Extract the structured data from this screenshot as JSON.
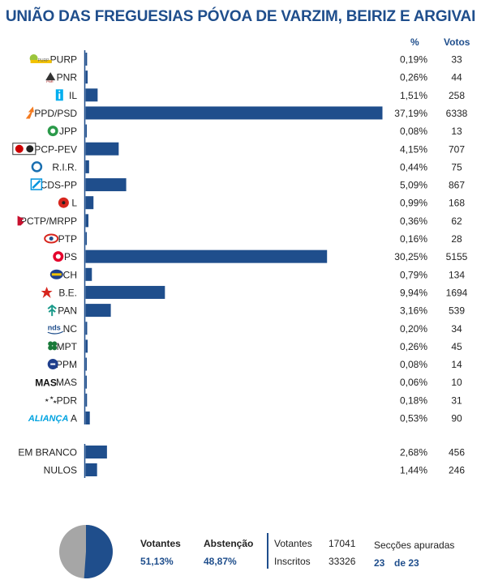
{
  "title": "UNIÃO DAS FREGUESIAS PÓVOA DE VARZIM, BEIRIZ E ARGIVAI",
  "headers": {
    "pct": "%",
    "votes": "Votos"
  },
  "chart_data": {
    "type": "bar",
    "orientation": "horizontal",
    "categories": [
      "PURP",
      "PNR",
      "IL",
      "PPD/PSD",
      "JPP",
      "PCP-PEV",
      "R.I.R.",
      "CDS-PP",
      "L",
      "PCTP/MRPP",
      "PTP",
      "PS",
      "CH",
      "B.E.",
      "PAN",
      "NC",
      "MPT",
      "PPM",
      "MAS",
      "PDR",
      "A",
      "EM BRANCO",
      "NULOS"
    ],
    "pct_labels": [
      "0,19%",
      "0,26%",
      "1,51%",
      "37,19%",
      "0,08%",
      "4,15%",
      "0,44%",
      "5,09%",
      "0,99%",
      "0,36%",
      "0,16%",
      "30,25%",
      "0,79%",
      "9,94%",
      "3,16%",
      "0,20%",
      "0,26%",
      "0,08%",
      "0,06%",
      "0,18%",
      "0,53%",
      "2,68%",
      "1,44%"
    ],
    "values": [
      0.19,
      0.26,
      1.51,
      37.19,
      0.08,
      4.15,
      0.44,
      5.09,
      0.99,
      0.36,
      0.16,
      30.25,
      0.79,
      9.94,
      3.16,
      0.2,
      0.26,
      0.08,
      0.06,
      0.18,
      0.53,
      2.68,
      1.44
    ],
    "votes": [
      "33",
      "44",
      "258",
      "6338",
      "13",
      "707",
      "75",
      "867",
      "168",
      "62",
      "28",
      "5155",
      "134",
      "1694",
      "539",
      "34",
      "45",
      "14",
      "10",
      "31",
      "90",
      "456",
      "246"
    ],
    "bar_color": "#1f4e8c"
  },
  "icons": [
    "purp-logo-icon",
    "pnr-logo-icon",
    "il-logo-icon",
    "psd-logo-icon",
    "jpp-logo-icon",
    "pcp-pev-logo-icon",
    "rir-logo-icon",
    "cds-pp-logo-icon",
    "livre-logo-icon",
    "pctp-logo-icon",
    "ptp-logo-icon",
    "ps-logo-icon",
    "chega-logo-icon",
    "be-logo-icon",
    "pan-logo-icon",
    "nc-logo-icon",
    "mpt-logo-icon",
    "ppm-logo-icon",
    "mas-logo-icon",
    "pdr-logo-icon",
    "alianca-logo-icon"
  ],
  "icon_text": {
    "purp": "PURP",
    "pnr": "PNR",
    "nc": "nds",
    "mas": "MAS",
    "alianca": "ALIANÇA"
  },
  "footer": {
    "votantes_label": "Votantes",
    "votantes_pct": "51,13%",
    "abstencao_label": "Abstenção",
    "abstencao_pct": "48,87%",
    "votantes_count_label": "Votantes",
    "votantes_count": "17041",
    "inscritos_label": "Inscritos",
    "inscritos_count": "33326",
    "seccoes_label": "Secções apuradas",
    "seccoes_done": "23",
    "seccoes_of": "de 23",
    "turnout_fraction": 0.5113
  }
}
